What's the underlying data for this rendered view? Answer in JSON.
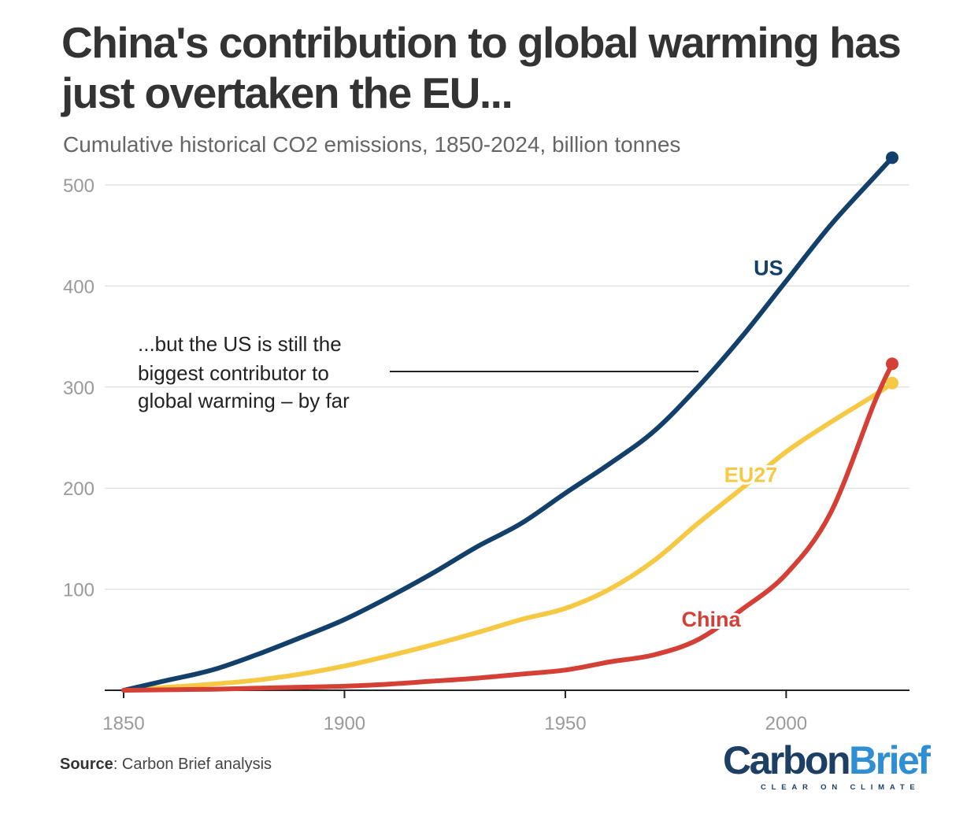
{
  "title": "China's contribution to global warming has just overtaken the EU...",
  "subtitle": "Cumulative historical CO2 emissions, 1850-2024, billion tonnes",
  "annotation": [
    "...but the US is still the",
    "biggest contributor to",
    "global warming – by far"
  ],
  "source": {
    "label": "Source",
    "text": ": Carbon Brief analysis"
  },
  "logo": {
    "word_a": "Carbon",
    "word_b": "Brief",
    "tagline": "CLEAR ON CLIMATE"
  },
  "colors": {
    "US": "#12406b",
    "EU27": "#f6c945",
    "China": "#d43f36",
    "grid": "#e3e3e3",
    "tick": "#9a9a9a"
  },
  "chart_data": {
    "type": "line",
    "title": "China's contribution to global warming has just overtaken the EU...",
    "subtitle": "Cumulative historical CO2 emissions, 1850-2024, billion tonnes",
    "xlabel": "",
    "ylabel": "",
    "xlim": [
      1850,
      2024
    ],
    "ylim": [
      0,
      520
    ],
    "x_ticks": [
      1850,
      1900,
      1950,
      2000
    ],
    "y_ticks": [
      100,
      200,
      300,
      400,
      500
    ],
    "grid": "horizontal",
    "series": [
      {
        "name": "US",
        "x": [
          1850,
          1860,
          1870,
          1880,
          1890,
          1900,
          1910,
          1920,
          1930,
          1940,
          1950,
          1960,
          1970,
          1980,
          1990,
          2000,
          2010,
          2020,
          2024
        ],
        "y": [
          0,
          10,
          20,
          35,
          52,
          70,
          92,
          116,
          142,
          165,
          195,
          224,
          256,
          300,
          350,
          405,
          460,
          508,
          527
        ]
      },
      {
        "name": "EU27",
        "x": [
          1850,
          1860,
          1870,
          1880,
          1890,
          1900,
          1910,
          1920,
          1930,
          1940,
          1950,
          1960,
          1970,
          1980,
          1990,
          2000,
          2010,
          2020,
          2024
        ],
        "y": [
          0,
          3,
          6,
          10,
          16,
          24,
          34,
          45,
          57,
          70,
          81,
          100,
          128,
          165,
          200,
          236,
          265,
          292,
          304
        ]
      },
      {
        "name": "China",
        "x": [
          1850,
          1860,
          1870,
          1880,
          1890,
          1900,
          1910,
          1920,
          1930,
          1940,
          1950,
          1960,
          1970,
          1980,
          1990,
          2000,
          2010,
          2020,
          2024
        ],
        "y": [
          0,
          0.5,
          1,
          2,
          3,
          4,
          6,
          9,
          12,
          16,
          20,
          28,
          35,
          50,
          80,
          115,
          175,
          285,
          323
        ]
      }
    ],
    "series_labels": [
      "US",
      "EU27",
      "China"
    ]
  }
}
